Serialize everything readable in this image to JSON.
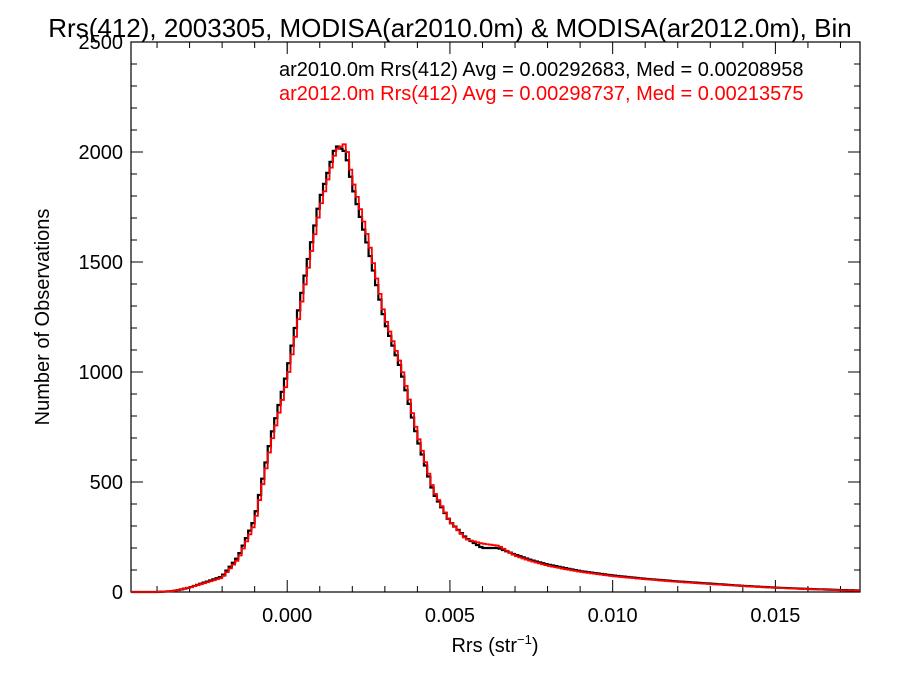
{
  "chart_data": {
    "type": "histogram",
    "title": "Rrs(412), 2003305, MODISA(ar2010.0m) & MODISA(ar2012.0m), Bin",
    "xlabel_base": "Rrs (str",
    "xlabel_sup": "−1",
    "xlabel_close": ")",
    "ylabel": "Number of Observations",
    "xlim": [
      -0.0048,
      0.0176
    ],
    "ylim": [
      0,
      2500
    ],
    "xticks": [
      0.0,
      0.005,
      0.01,
      0.015
    ],
    "xtick_labels": [
      "0.000",
      "0.005",
      "0.010",
      "0.015"
    ],
    "yticks": [
      0,
      500,
      1000,
      1500,
      2000,
      2500
    ],
    "ytick_labels": [
      "0",
      "500",
      "1000",
      "1500",
      "2000",
      "2500"
    ],
    "bin_width": 0.0001,
    "x_start": -0.0048,
    "x_end": 0.0176,
    "series": [
      {
        "name": "ar2010.0m",
        "color": "#000000",
        "legend": "ar2010.0m Rrs(412) Avg = 0.00292683, Med = 0.00208958",
        "curve": [
          [
            -0.0048,
            0
          ],
          [
            -0.004,
            0
          ],
          [
            -0.0035,
            4
          ],
          [
            -0.003,
            20
          ],
          [
            -0.0025,
            45
          ],
          [
            -0.002,
            70
          ],
          [
            -0.0015,
            160
          ],
          [
            -0.001,
            330
          ],
          [
            -0.0005,
            700
          ],
          [
            0.0,
            1000
          ],
          [
            0.0005,
            1400
          ],
          [
            0.001,
            1780
          ],
          [
            0.0015,
            2030
          ],
          [
            0.0018,
            2000
          ],
          [
            0.002,
            1850
          ],
          [
            0.0025,
            1560
          ],
          [
            0.003,
            1230
          ],
          [
            0.0035,
            1010
          ],
          [
            0.004,
            700
          ],
          [
            0.0045,
            450
          ],
          [
            0.005,
            320
          ],
          [
            0.0055,
            245
          ],
          [
            0.006,
            200
          ],
          [
            0.0065,
            200
          ],
          [
            0.007,
            170
          ],
          [
            0.0075,
            145
          ],
          [
            0.008,
            125
          ],
          [
            0.0085,
            110
          ],
          [
            0.009,
            95
          ],
          [
            0.0095,
            85
          ],
          [
            0.01,
            75
          ],
          [
            0.011,
            60
          ],
          [
            0.012,
            48
          ],
          [
            0.013,
            38
          ],
          [
            0.014,
            28
          ],
          [
            0.015,
            20
          ],
          [
            0.016,
            14
          ],
          [
            0.017,
            9
          ],
          [
            0.0176,
            7
          ]
        ]
      },
      {
        "name": "ar2012.0m",
        "color": "#ff0000",
        "legend": "ar2012.0m Rrs(412) Avg = 0.00298737, Med = 0.00213575",
        "curve": [
          [
            -0.0048,
            0
          ],
          [
            -0.004,
            0
          ],
          [
            -0.0035,
            4
          ],
          [
            -0.003,
            20
          ],
          [
            -0.0025,
            42
          ],
          [
            -0.002,
            65
          ],
          [
            -0.0015,
            150
          ],
          [
            -0.001,
            310
          ],
          [
            -0.0005,
            670
          ],
          [
            0.0,
            960
          ],
          [
            0.0005,
            1360
          ],
          [
            0.001,
            1740
          ],
          [
            0.0015,
            2010
          ],
          [
            0.0018,
            2040
          ],
          [
            0.002,
            1880
          ],
          [
            0.0025,
            1600
          ],
          [
            0.003,
            1250
          ],
          [
            0.0035,
            1030
          ],
          [
            0.004,
            720
          ],
          [
            0.0045,
            460
          ],
          [
            0.005,
            320
          ],
          [
            0.0055,
            240
          ],
          [
            0.006,
            220
          ],
          [
            0.0065,
            210
          ],
          [
            0.007,
            165
          ],
          [
            0.0075,
            140
          ],
          [
            0.008,
            120
          ],
          [
            0.0085,
            105
          ],
          [
            0.009,
            92
          ],
          [
            0.0095,
            82
          ],
          [
            0.01,
            72
          ],
          [
            0.011,
            58
          ],
          [
            0.012,
            46
          ],
          [
            0.013,
            36
          ],
          [
            0.014,
            27
          ],
          [
            0.015,
            19
          ],
          [
            0.016,
            13
          ],
          [
            0.017,
            8
          ],
          [
            0.0176,
            6
          ]
        ]
      }
    ]
  }
}
